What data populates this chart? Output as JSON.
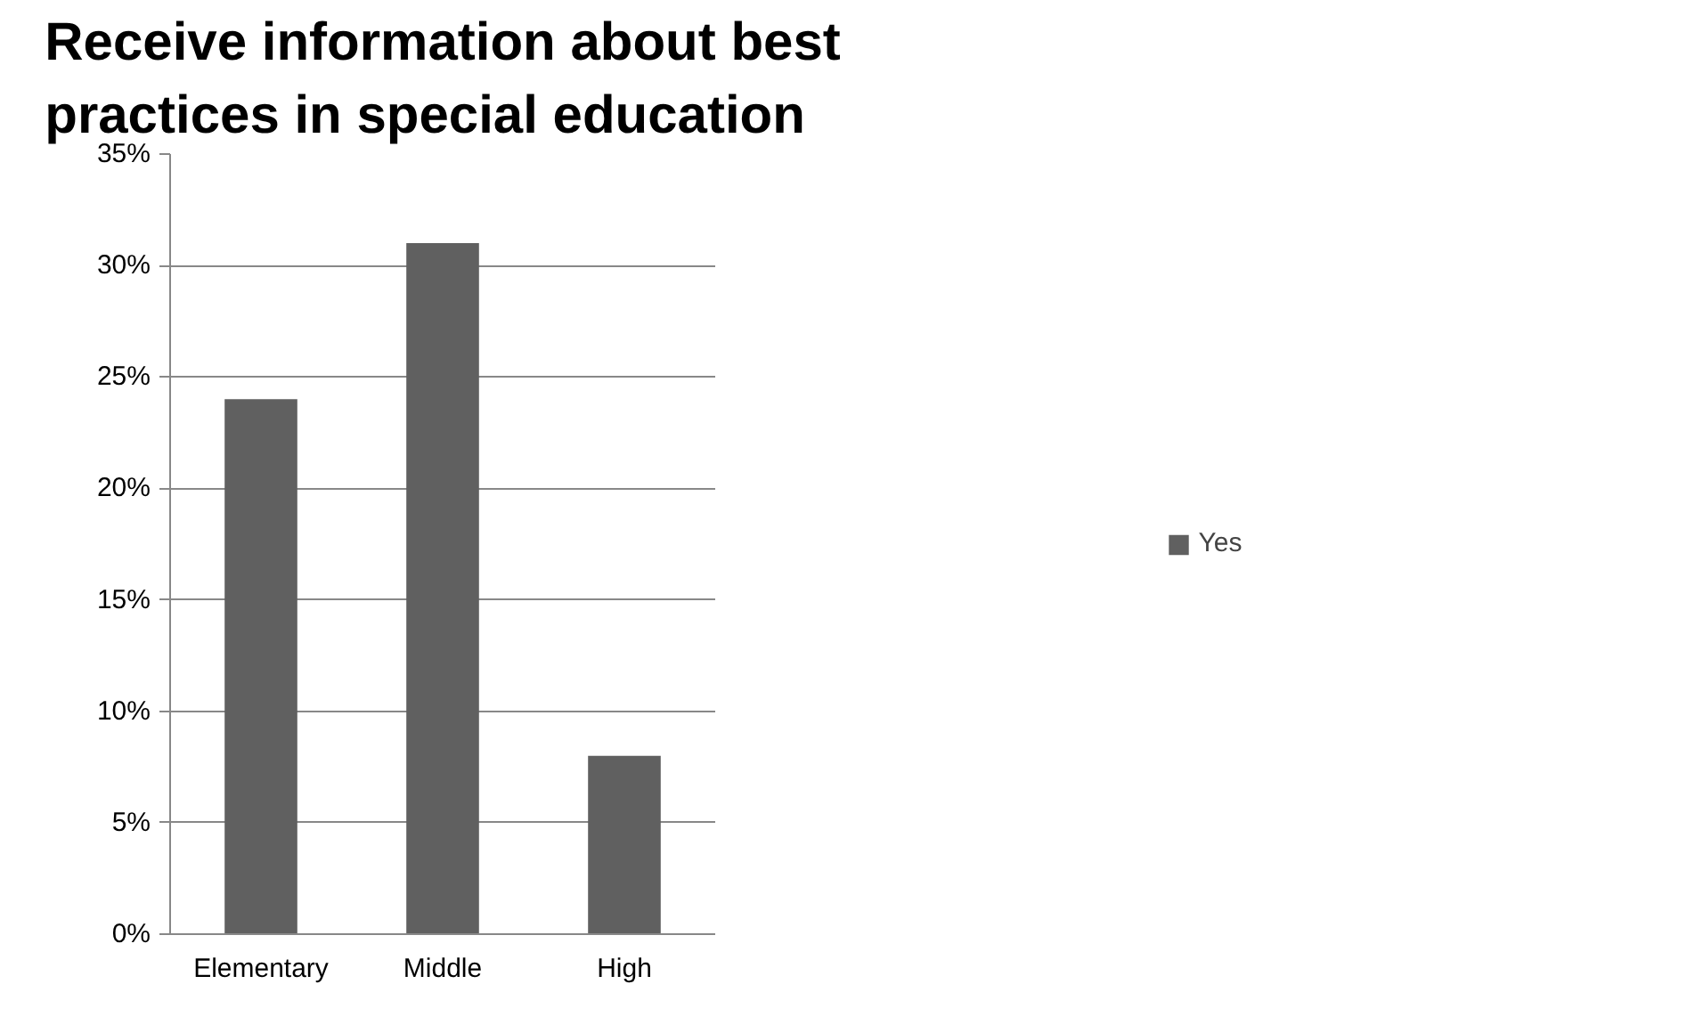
{
  "chart_data": {
    "type": "bar",
    "title": "Receive information about best practices in special education",
    "categories": [
      "Elementary",
      "Middle",
      "High"
    ],
    "series": [
      {
        "name": "Yes",
        "color": "#606060",
        "values": [
          24,
          31,
          8
        ]
      }
    ],
    "ylim": [
      0,
      35
    ],
    "yticks": [
      {
        "value": 0,
        "label": "0%"
      },
      {
        "value": 5,
        "label": "5%"
      },
      {
        "value": 10,
        "label": "10%"
      },
      {
        "value": 15,
        "label": "15%"
      },
      {
        "value": 20,
        "label": "20%"
      },
      {
        "value": 25,
        "label": "25%"
      },
      {
        "value": 30,
        "label": "30%"
      },
      {
        "value": 35,
        "label": "35%"
      }
    ],
    "grid": "y",
    "legend": "right"
  }
}
